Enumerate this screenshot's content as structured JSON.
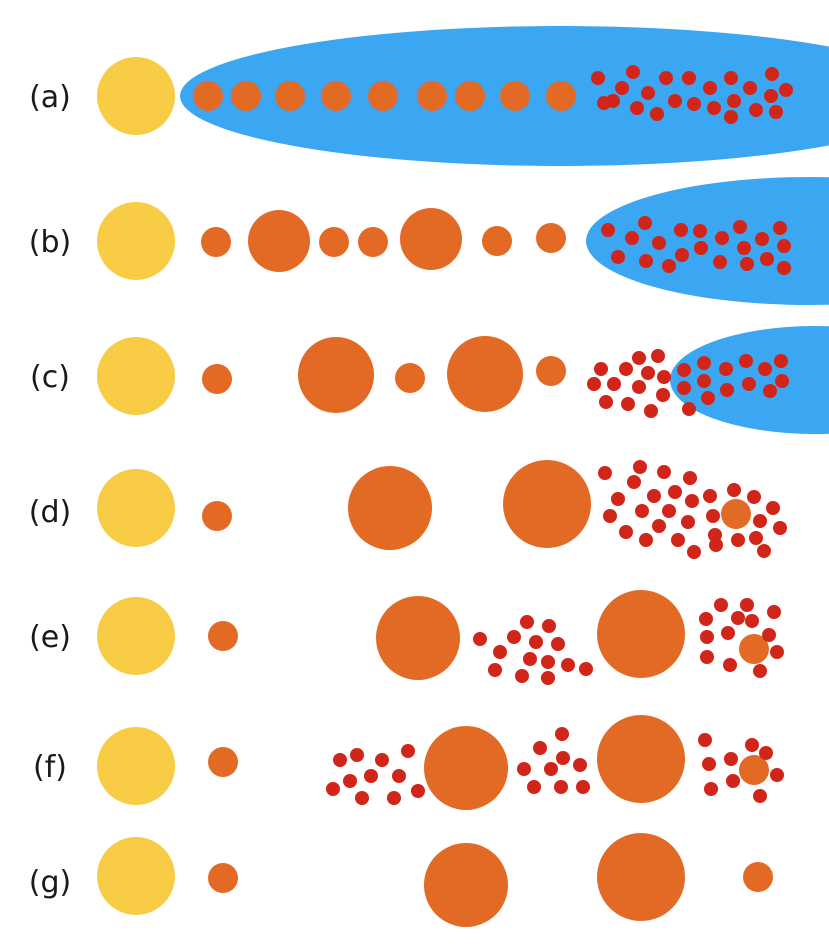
{
  "colors": {
    "star": "#F8CD45",
    "planet": "#E26A25",
    "disk": "#3BA6F2",
    "pebble": "#D22519",
    "label": "#1a1a1a",
    "background": "#ffffff"
  },
  "rows": [
    {
      "id": "a",
      "label": "(a)"
    },
    {
      "id": "b",
      "label": "(b)"
    },
    {
      "id": "c",
      "label": "(c)"
    },
    {
      "id": "d",
      "label": "(d)"
    },
    {
      "id": "e",
      "label": "(e)"
    },
    {
      "id": "f",
      "label": "(f)"
    },
    {
      "id": "g",
      "label": "(g)"
    }
  ]
}
